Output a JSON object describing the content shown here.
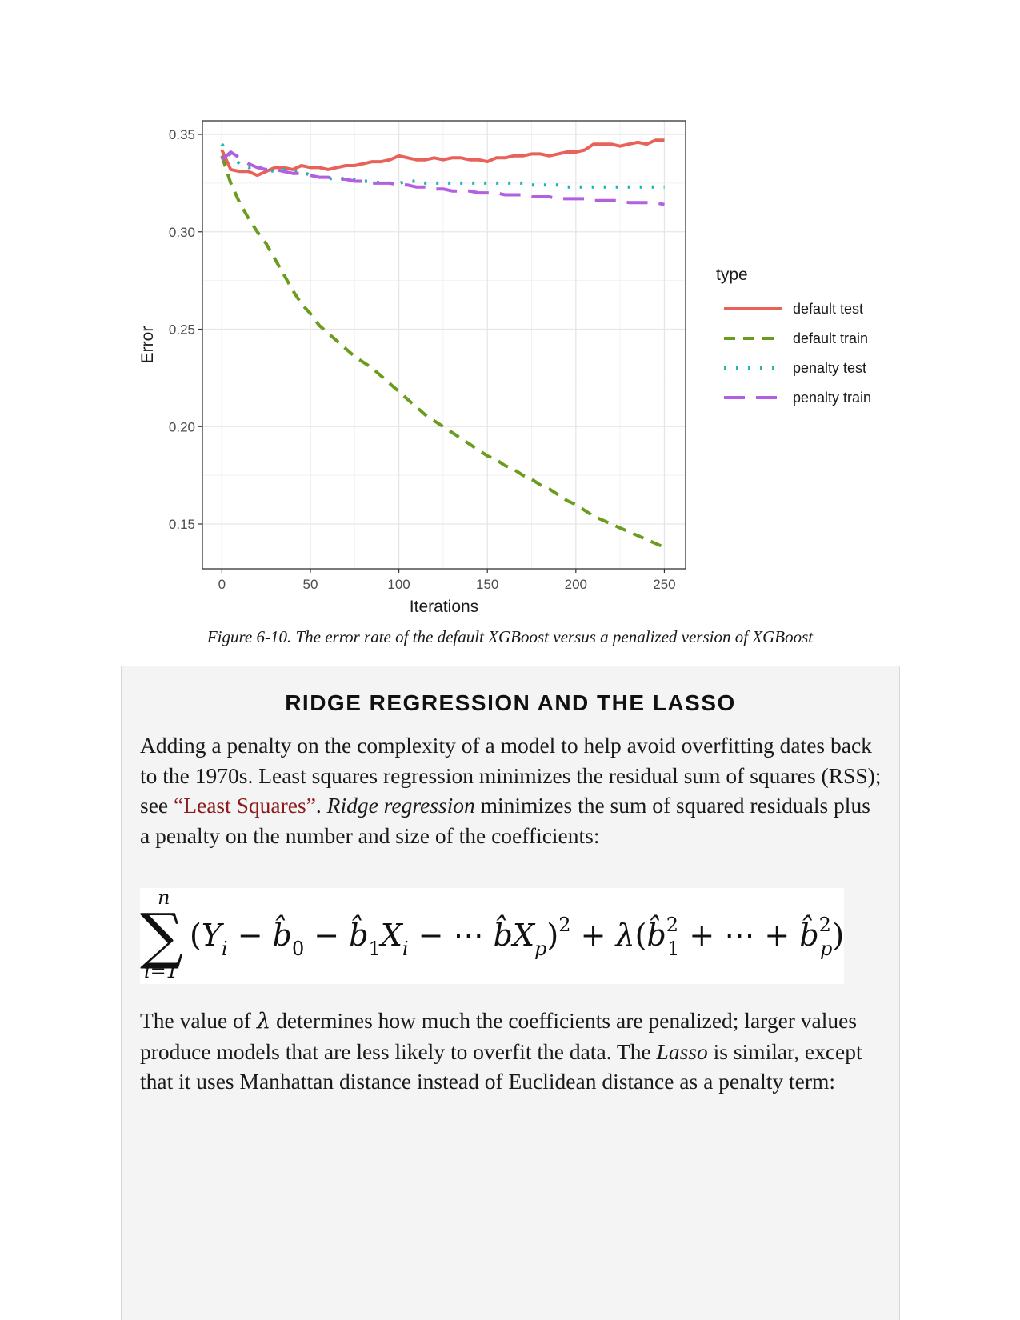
{
  "chart_data": {
    "type": "line",
    "xlabel": "Iterations",
    "ylabel": "Error",
    "xlim": [
      -11,
      262
    ],
    "ylim": [
      0.127,
      0.357
    ],
    "x_ticks": [
      0,
      50,
      100,
      150,
      200,
      250
    ],
    "y_ticks": [
      0.15,
      0.2,
      0.25,
      0.3,
      0.35
    ],
    "x_tick_labels": [
      "0",
      "50",
      "100",
      "150",
      "200",
      "250"
    ],
    "y_tick_labels": [
      "0.15",
      "0.20",
      "0.25",
      "0.30",
      "0.35"
    ],
    "grid": true,
    "legend_title": "type",
    "legend_position": "right",
    "series": [
      {
        "name": "default test",
        "color": "#e8625a",
        "dash": "solid",
        "points": [
          [
            0,
            0.342
          ],
          [
            5,
            0.332
          ],
          [
            10,
            0.331
          ],
          [
            15,
            0.331
          ],
          [
            20,
            0.329
          ],
          [
            25,
            0.331
          ],
          [
            30,
            0.333
          ],
          [
            35,
            0.333
          ],
          [
            40,
            0.332
          ],
          [
            45,
            0.334
          ],
          [
            50,
            0.333
          ],
          [
            55,
            0.333
          ],
          [
            60,
            0.332
          ],
          [
            65,
            0.333
          ],
          [
            70,
            0.334
          ],
          [
            75,
            0.334
          ],
          [
            80,
            0.335
          ],
          [
            85,
            0.336
          ],
          [
            90,
            0.336
          ],
          [
            95,
            0.337
          ],
          [
            100,
            0.339
          ],
          [
            105,
            0.338
          ],
          [
            110,
            0.337
          ],
          [
            115,
            0.337
          ],
          [
            120,
            0.338
          ],
          [
            125,
            0.337
          ],
          [
            130,
            0.338
          ],
          [
            135,
            0.338
          ],
          [
            140,
            0.337
          ],
          [
            145,
            0.337
          ],
          [
            150,
            0.336
          ],
          [
            155,
            0.338
          ],
          [
            160,
            0.338
          ],
          [
            165,
            0.339
          ],
          [
            170,
            0.339
          ],
          [
            175,
            0.34
          ],
          [
            180,
            0.34
          ],
          [
            185,
            0.339
          ],
          [
            190,
            0.34
          ],
          [
            195,
            0.341
          ],
          [
            200,
            0.341
          ],
          [
            205,
            0.342
          ],
          [
            210,
            0.345
          ],
          [
            215,
            0.345
          ],
          [
            220,
            0.345
          ],
          [
            225,
            0.344
          ],
          [
            230,
            0.345
          ],
          [
            235,
            0.346
          ],
          [
            240,
            0.345
          ],
          [
            245,
            0.347
          ],
          [
            250,
            0.347
          ]
        ]
      },
      {
        "name": "default train",
        "color": "#6b9c1e",
        "dash": "long",
        "points": [
          [
            0,
            0.339
          ],
          [
            5,
            0.325
          ],
          [
            10,
            0.315
          ],
          [
            15,
            0.307
          ],
          [
            20,
            0.3
          ],
          [
            25,
            0.294
          ],
          [
            30,
            0.286
          ],
          [
            35,
            0.278
          ],
          [
            40,
            0.27
          ],
          [
            45,
            0.263
          ],
          [
            50,
            0.258
          ],
          [
            55,
            0.252
          ],
          [
            60,
            0.248
          ],
          [
            65,
            0.244
          ],
          [
            70,
            0.24
          ],
          [
            75,
            0.236
          ],
          [
            80,
            0.233
          ],
          [
            85,
            0.23
          ],
          [
            90,
            0.226
          ],
          [
            95,
            0.222
          ],
          [
            100,
            0.218
          ],
          [
            105,
            0.214
          ],
          [
            110,
            0.21
          ],
          [
            115,
            0.206
          ],
          [
            120,
            0.203
          ],
          [
            125,
            0.2
          ],
          [
            130,
            0.197
          ],
          [
            135,
            0.194
          ],
          [
            140,
            0.191
          ],
          [
            145,
            0.188
          ],
          [
            150,
            0.185
          ],
          [
            155,
            0.183
          ],
          [
            160,
            0.18
          ],
          [
            165,
            0.178
          ],
          [
            170,
            0.175
          ],
          [
            175,
            0.173
          ],
          [
            180,
            0.17
          ],
          [
            185,
            0.168
          ],
          [
            190,
            0.165
          ],
          [
            195,
            0.162
          ],
          [
            200,
            0.16
          ],
          [
            205,
            0.157
          ],
          [
            210,
            0.154
          ],
          [
            215,
            0.152
          ],
          [
            220,
            0.15
          ],
          [
            225,
            0.148
          ],
          [
            230,
            0.146
          ],
          [
            235,
            0.144
          ],
          [
            240,
            0.142
          ],
          [
            245,
            0.14
          ],
          [
            250,
            0.138
          ]
        ]
      },
      {
        "name": "penalty test",
        "color": "#1fb3b3",
        "dash": "dotted",
        "points": [
          [
            0,
            0.345
          ],
          [
            5,
            0.339
          ],
          [
            10,
            0.335
          ],
          [
            15,
            0.333
          ],
          [
            20,
            0.334
          ],
          [
            25,
            0.332
          ],
          [
            30,
            0.331
          ],
          [
            35,
            0.332
          ],
          [
            40,
            0.331
          ],
          [
            45,
            0.331
          ],
          [
            50,
            0.329
          ],
          [
            55,
            0.328
          ],
          [
            60,
            0.327
          ],
          [
            65,
            0.328
          ],
          [
            70,
            0.327
          ],
          [
            75,
            0.327
          ],
          [
            80,
            0.326
          ],
          [
            85,
            0.326
          ],
          [
            90,
            0.325
          ],
          [
            95,
            0.325
          ],
          [
            100,
            0.325
          ],
          [
            105,
            0.326
          ],
          [
            110,
            0.326
          ],
          [
            115,
            0.325
          ],
          [
            120,
            0.325
          ],
          [
            125,
            0.325
          ],
          [
            130,
            0.325
          ],
          [
            135,
            0.325
          ],
          [
            140,
            0.325
          ],
          [
            145,
            0.325
          ],
          [
            150,
            0.325
          ],
          [
            155,
            0.325
          ],
          [
            160,
            0.325
          ],
          [
            165,
            0.325
          ],
          [
            170,
            0.325
          ],
          [
            175,
            0.324
          ],
          [
            180,
            0.324
          ],
          [
            185,
            0.324
          ],
          [
            190,
            0.324
          ],
          [
            195,
            0.323
          ],
          [
            200,
            0.323
          ],
          [
            205,
            0.323
          ],
          [
            210,
            0.323
          ],
          [
            215,
            0.323
          ],
          [
            220,
            0.323
          ],
          [
            225,
            0.323
          ],
          [
            230,
            0.323
          ],
          [
            235,
            0.323
          ],
          [
            240,
            0.323
          ],
          [
            245,
            0.323
          ],
          [
            250,
            0.323
          ]
        ]
      },
      {
        "name": "penalty train",
        "color": "#b360e0",
        "dash": "longdash",
        "points": [
          [
            0,
            0.337
          ],
          [
            5,
            0.341
          ],
          [
            10,
            0.338
          ],
          [
            15,
            0.335
          ],
          [
            20,
            0.333
          ],
          [
            25,
            0.332
          ],
          [
            30,
            0.332
          ],
          [
            35,
            0.331
          ],
          [
            40,
            0.33
          ],
          [
            45,
            0.33
          ],
          [
            50,
            0.329
          ],
          [
            55,
            0.328
          ],
          [
            60,
            0.328
          ],
          [
            65,
            0.327
          ],
          [
            70,
            0.327
          ],
          [
            75,
            0.326
          ],
          [
            80,
            0.326
          ],
          [
            85,
            0.325
          ],
          [
            90,
            0.325
          ],
          [
            95,
            0.325
          ],
          [
            100,
            0.324
          ],
          [
            105,
            0.324
          ],
          [
            110,
            0.323
          ],
          [
            115,
            0.323
          ],
          [
            120,
            0.322
          ],
          [
            125,
            0.322
          ],
          [
            130,
            0.321
          ],
          [
            135,
            0.321
          ],
          [
            140,
            0.321
          ],
          [
            145,
            0.32
          ],
          [
            150,
            0.32
          ],
          [
            155,
            0.32
          ],
          [
            160,
            0.319
          ],
          [
            165,
            0.319
          ],
          [
            170,
            0.319
          ],
          [
            175,
            0.318
          ],
          [
            180,
            0.318
          ],
          [
            185,
            0.318
          ],
          [
            190,
            0.317
          ],
          [
            195,
            0.317
          ],
          [
            200,
            0.317
          ],
          [
            205,
            0.317
          ],
          [
            210,
            0.316
          ],
          [
            215,
            0.316
          ],
          [
            220,
            0.316
          ],
          [
            225,
            0.316
          ],
          [
            230,
            0.315
          ],
          [
            235,
            0.315
          ],
          [
            240,
            0.315
          ],
          [
            245,
            0.315
          ],
          [
            250,
            0.314
          ]
        ]
      }
    ]
  },
  "caption": "Figure 6-10. The error rate of the default XGBoost versus a penalized version of XGBoost",
  "sidebar": {
    "title": "RIDGE REGRESSION AND THE LASSO",
    "para1": {
      "text_a": "Adding a penalty on the complexity of a model to help avoid overfitting dates back to the 1970s. Least squares regression minimizes the residual sum of squares (RSS); see ",
      "link": "“Least Squares”",
      "text_b": ". ",
      "emph": "Ridge regression",
      "text_c": " minimizes the sum of squared residuals plus a penalty on the number and size of the coefficients:"
    },
    "formula": {
      "sum_upper": "n",
      "sum_lower": "i=1",
      "body": "(Y_i − b̂_0 − b̂_1X_i − ⋯ b̂X_p)^2 + λ(b̂_1^2 + ⋯ + b̂_p^2)"
    },
    "para2": {
      "text_a": "The value of ",
      "lambda": "λ",
      "text_b": " determines how much the coefficients are penalized; larger values produce models that are less likely to overfit the data. The ",
      "emph": "Lasso",
      "text_c": " is similar, except that it uses Manhattan distance instead of Euclidean distance as a penalty term:"
    }
  }
}
